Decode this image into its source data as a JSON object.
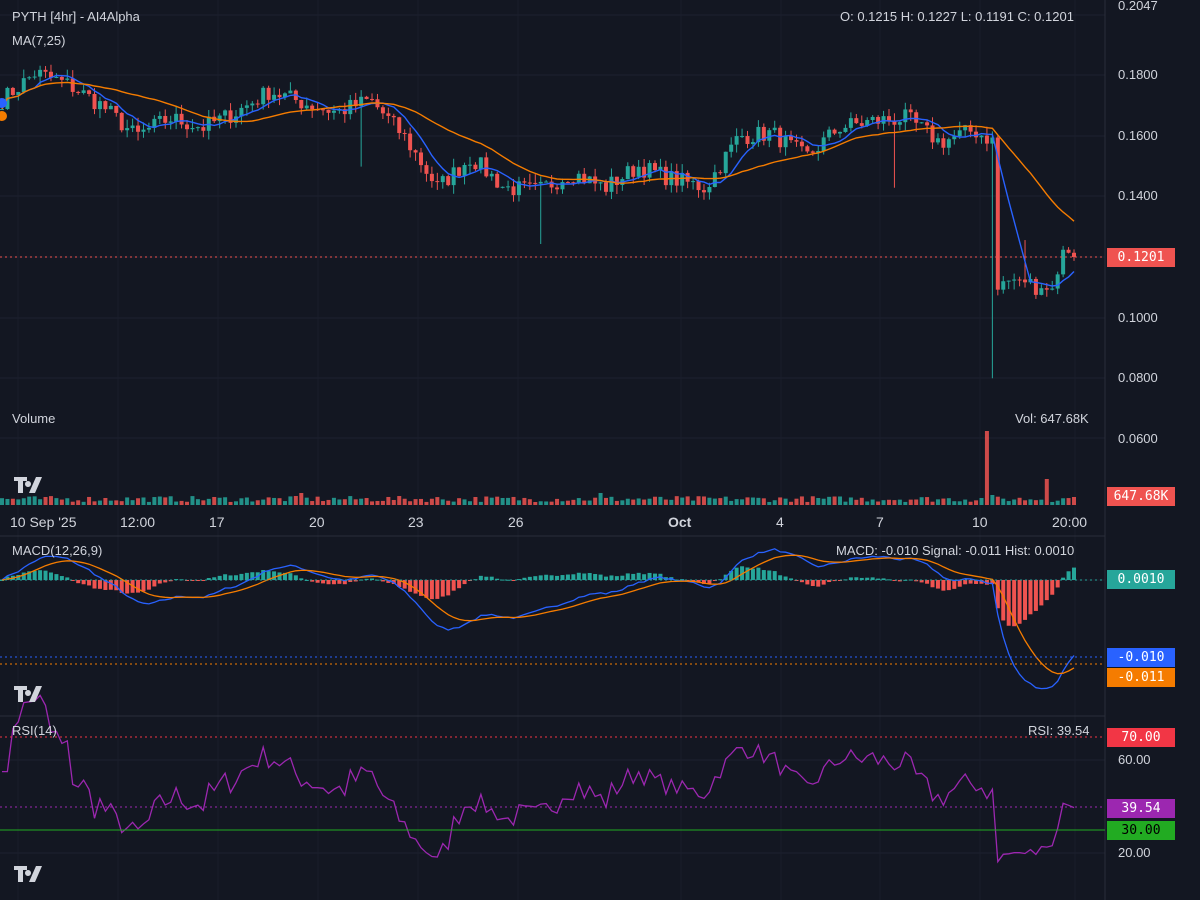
{
  "header": {
    "title": "PYTH [4hr] - AI4Alpha",
    "ohlc": "O: 0.1215 H: 0.1227 L: 0.1191 C: 0.1201",
    "ma_label": "MA(7,25)"
  },
  "volume_pane": {
    "label": "Volume",
    "readout": "Vol: 647.68K",
    "last_badge": "647.68K"
  },
  "macd_pane": {
    "label": "MACD(12,26,9)",
    "readout": "MACD: -0.010 Signal: -0.011 Hist: 0.0010",
    "hist_badge": "0.0010",
    "macd_badge": "-0.010",
    "signal_badge": "-0.011"
  },
  "rsi_pane": {
    "label": "RSI(14)",
    "readout": "RSI: 39.54",
    "badge_70": "70.00",
    "badge_value": "39.54",
    "badge_30": "30.00",
    "tick_60": "60.00",
    "tick_20": "20.00"
  },
  "price_axis": {
    "ticks": [
      "0.2047",
      "0.1800",
      "0.1600",
      "0.1400",
      "0.1000",
      "0.0800",
      "0.0600"
    ],
    "last_price_badge": "0.1201"
  },
  "time_axis": [
    "10 Sep '25",
    "12:00",
    "17",
    "20",
    "23",
    "26",
    "Oct",
    "4",
    "7",
    "10",
    "20:00"
  ],
  "colors": {
    "background": "#131722",
    "up": "#26a69a",
    "down": "#ef5350",
    "ma_fast": "#2962ff",
    "ma_slow": "#f57c00",
    "rsi": "#9c27b0",
    "rsi_70": "#f23645",
    "rsi_30": "#22ab22"
  },
  "chart_data": [
    {
      "type": "candlestick",
      "title": "PYTH [4hr] - AI4Alpha",
      "interval": "4hr",
      "x_range": [
        "10 Sep '25",
        "Oct 12 20:00"
      ],
      "ylim": [
        0.06,
        0.2047
      ],
      "last": {
        "open": 0.1215,
        "high": 0.1227,
        "low": 0.1191,
        "close": 0.1201
      },
      "anchors": [
        [
          "10 Sep",
          0.172
        ],
        [
          "11 Sep",
          0.181
        ],
        [
          "12 Sep",
          0.177
        ],
        [
          "13 Sep",
          0.17
        ],
        [
          "14 Sep",
          0.16
        ],
        [
          "15 Sep",
          0.166
        ],
        [
          "16 Sep",
          0.163
        ],
        [
          "17 Sep",
          0.168
        ],
        [
          "18 Sep",
          0.175
        ],
        [
          "19 Sep",
          0.171
        ],
        [
          "20 Sep",
          0.168
        ],
        [
          "21 Sep",
          0.172
        ],
        [
          "22 Sep",
          0.16
        ],
        [
          "23 Sep",
          0.143
        ],
        [
          "24 Sep",
          0.153
        ],
        [
          "25 Sep",
          0.143
        ],
        [
          "26 Sep",
          0.142
        ],
        [
          "27 Sep",
          0.148
        ],
        [
          "28 Sep",
          0.143
        ],
        [
          "29 Sep",
          0.15
        ],
        [
          "30 Sep",
          0.146
        ],
        [
          "1 Oct",
          0.143
        ],
        [
          "2 Oct",
          0.16
        ],
        [
          "3 Oct",
          0.161
        ],
        [
          "4 Oct",
          0.153
        ],
        [
          "5 Oct",
          0.163
        ],
        [
          "6 Oct",
          0.165
        ],
        [
          "7 Oct",
          0.166
        ],
        [
          "8 Oct",
          0.158
        ],
        [
          "9 Oct",
          0.162
        ],
        [
          "10 Oct",
          0.156
        ],
        [
          "11 Oct",
          0.111
        ],
        [
          "12 Oct",
          0.12
        ]
      ],
      "wicks": {
        "min_low": 0.08
      },
      "indicators": [
        "MA(7)",
        "MA(25)"
      ]
    },
    {
      "type": "bar",
      "title": "Volume",
      "last_value": "647.68K",
      "note_values": {
        "spike_10_oct": "largest bar",
        "last": 647.68
      }
    },
    {
      "type": "line",
      "title": "MACD(12,26,9)",
      "macd": -0.01,
      "signal": -0.011,
      "hist": 0.001
    },
    {
      "type": "line",
      "title": "RSI(14)",
      "value": 39.54,
      "levels": [
        70,
        30
      ],
      "ylim": [
        10,
        80
      ]
    }
  ]
}
